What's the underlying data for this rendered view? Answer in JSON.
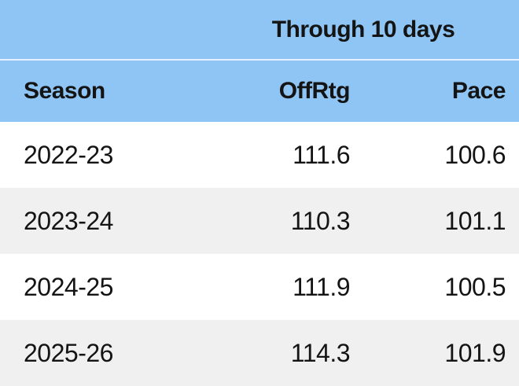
{
  "chart_data": {
    "type": "table",
    "title": "Through 10 days",
    "columns": [
      "Season",
      "OffRtg",
      "Pace"
    ],
    "rows": [
      [
        "2022-23",
        "111.6",
        "100.6"
      ],
      [
        "2023-24",
        "110.3",
        "101.1"
      ],
      [
        "2024-25",
        "111.9",
        "100.5"
      ],
      [
        "2025-26",
        "114.3",
        "101.9"
      ]
    ]
  },
  "colors": {
    "header_bg": "#8FC5F5",
    "header_separator": "#E5F2FE",
    "row_bg": "#FFFFFF",
    "row_alt_bg": "#F0F0F1",
    "text": "#141414"
  }
}
